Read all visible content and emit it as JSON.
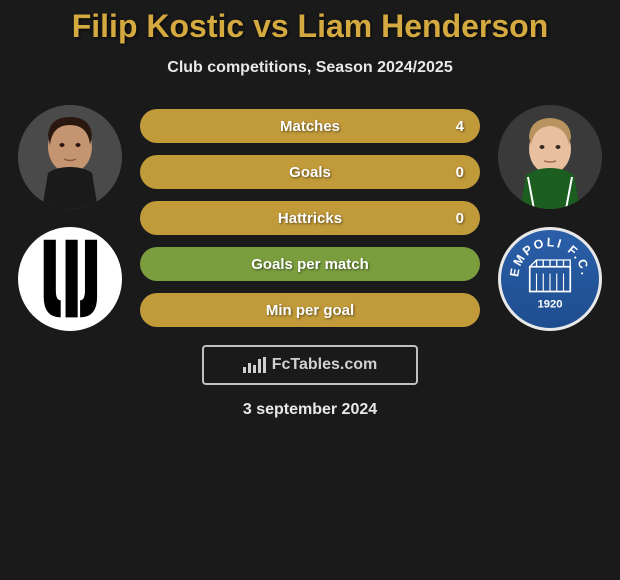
{
  "title": "Filip Kostic vs Liam Henderson",
  "subtitle": "Club competitions, Season 2024/2025",
  "date": "3 september 2024",
  "watermark": "FcTables.com",
  "stats": [
    {
      "label": "Matches",
      "value": "4",
      "bg": "#c19a3a"
    },
    {
      "label": "Goals",
      "value": "0",
      "bg": "#c19a3a"
    },
    {
      "label": "Hattricks",
      "value": "0",
      "bg": "#c19a3a"
    },
    {
      "label": "Goals per match",
      "value": "",
      "bg": "#7a9e3e"
    },
    {
      "label": "Min per goal",
      "value": "",
      "bg": "#c19a3a"
    }
  ],
  "players": {
    "left": {
      "name": "Filip Kostic",
      "club": "Juventus"
    },
    "right": {
      "name": "Liam Henderson",
      "club": "Empoli",
      "club_year": "1920"
    }
  },
  "colors": {
    "accent": "#d4a93f",
    "green": "#7a9e3e"
  }
}
